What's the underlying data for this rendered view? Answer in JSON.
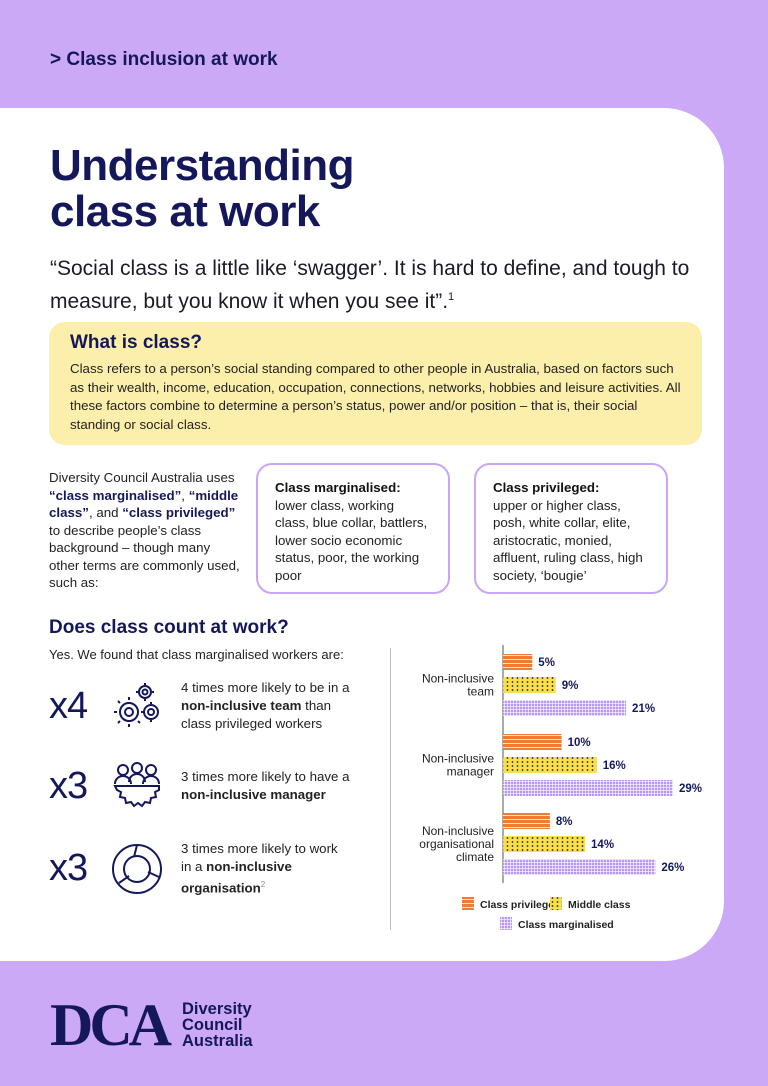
{
  "header": {
    "kicker": "> Class inclusion at work"
  },
  "title": {
    "line1": "Understanding",
    "line2": "class at work"
  },
  "quote": {
    "text": "“Social class is a little like ‘swagger’. It is hard to define, and tough to measure, but you know it when you see it”.",
    "footnote": "1"
  },
  "what_is_class": {
    "heading": "What is class?",
    "body": "Class refers to a person’s social standing compared to other people in Australia, based on factors such as their wealth, income, education, occupation, connections, networks, hobbies and leisure activities. All these factors combine to determine a person’s status, power and/or position – that is, their social standing or social class."
  },
  "intro": {
    "p1": "Diversity Council Australia uses ",
    "t1": "“class marginalised”",
    "p2": ", ",
    "t2": "“middle class”",
    "p3": ", and ",
    "t3": "“class privileged”",
    "p4": " to describe people’s class background – though many other terms are commonly used, such as:"
  },
  "terms": [
    {
      "heading": "Class marginalised:",
      "body": "lower class, working class, blue collar, battlers, lower socio economic status, poor, the working poor"
    },
    {
      "heading": "Class privileged:",
      "body": "upper or higher class, posh, white collar, elite, aristocratic, monied, affluent, ruling class, high society, ‘bougie’"
    }
  ],
  "section": {
    "heading": "Does class count at work?",
    "lead": "Yes. We found that class marginalised workers are:"
  },
  "stats": [
    {
      "multiplier": "x4",
      "icon": "gears-icon",
      "pre": "4 times more likely to be in a ",
      "bold": "non-inclusive team",
      "post": " than class privileged workers",
      "sup": ""
    },
    {
      "multiplier": "x3",
      "icon": "people-gear-icon",
      "pre": "3 times more likely to have a ",
      "bold": "non-inclusive manager",
      "post": "",
      "sup": ""
    },
    {
      "multiplier": "x3",
      "icon": "cycle-icon",
      "pre": "3 times more likely to work in a ",
      "bold": "non-inclusive organisation",
      "post": "",
      "sup": "2"
    }
  ],
  "chart_data": {
    "type": "bar",
    "orientation": "horizontal",
    "categories": [
      [
        "Non-inclusive",
        "team"
      ],
      [
        "Non-inclusive",
        "manager"
      ],
      [
        "Non-inclusive",
        "organisational",
        "climate"
      ]
    ],
    "unit": "%",
    "series": [
      {
        "name": "Class privileged",
        "color": "#ee7d31",
        "pattern": "horizontal-lines",
        "values": [
          5,
          10,
          8
        ]
      },
      {
        "name": "Middle class",
        "color": "#f9e04b",
        "pattern": "dots",
        "values": [
          9,
          16,
          14
        ]
      },
      {
        "name": "Class marginalised",
        "color": "#b897f5",
        "pattern": "grid",
        "values": [
          21,
          29,
          26
        ]
      }
    ],
    "xlim": [
      0,
      30
    ],
    "legend": "bottom"
  },
  "footer": {
    "logo_mark": "DCA",
    "org_line1": "Diversity",
    "org_line2": "Council",
    "org_line3": "Australia"
  }
}
